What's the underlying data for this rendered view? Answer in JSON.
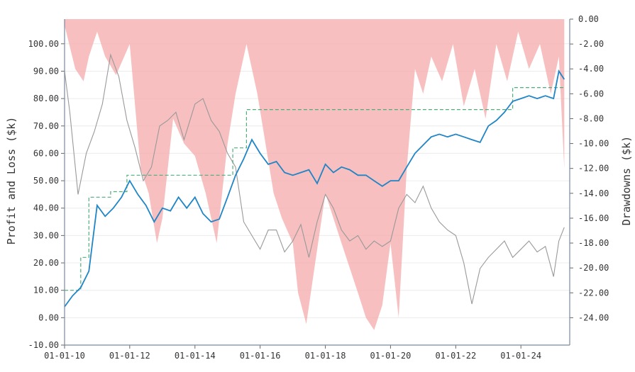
{
  "chart_data": {
    "type": "line",
    "xlabel": "",
    "ylabel": "Profit and Loss ($k)",
    "y2label": "Drawdowns ($k)",
    "xlim": [
      "2010-01-01",
      "2025-07-01"
    ],
    "ylim": [
      -10,
      109
    ],
    "y2lim": [
      -26.2,
      0
    ],
    "x_ticks": [
      {
        "date": "2010-01-01",
        "label": "01-01-10"
      },
      {
        "date": "2012-01-01",
        "label": "01-01-12"
      },
      {
        "date": "2014-01-01",
        "label": "01-01-14"
      },
      {
        "date": "2016-01-01",
        "label": "01-01-16"
      },
      {
        "date": "2018-01-01",
        "label": "01-01-18"
      },
      {
        "date": "2020-01-01",
        "label": "01-01-20"
      },
      {
        "date": "2022-01-01",
        "label": "01-01-22"
      },
      {
        "date": "2024-01-01",
        "label": "01-01-24"
      }
    ],
    "y_ticks": [
      "-10.00",
      "0.00",
      "10.00",
      "20.00",
      "30.00",
      "40.00",
      "50.00",
      "60.00",
      "70.00",
      "80.00",
      "90.00",
      "100.00"
    ],
    "y2_ticks": [
      "0.00",
      "-2.00",
      "-4.00",
      "-6.00",
      "-8.00",
      "-10.00",
      "-12.00",
      "-14.00",
      "-16.00",
      "-18.00",
      "-20.00",
      "-22.00",
      "-24.00"
    ],
    "grid": true,
    "legend": "none",
    "colors": {
      "pnl": "#1f85c6",
      "peak": "#4fae7c",
      "drawdown": "#f4aaaa",
      "price": "#999999"
    },
    "series": [
      {
        "role": "pnl",
        "x": [
          "2010-01-01",
          "2010-04-01",
          "2010-07-01",
          "2010-10-01",
          "2011-01-01",
          "2011-04-01",
          "2011-07-01",
          "2011-10-01",
          "2012-01-01",
          "2012-04-01",
          "2012-07-01",
          "2012-10-01",
          "2013-01-01",
          "2013-04-01",
          "2013-07-01",
          "2013-10-01",
          "2014-01-01",
          "2014-04-01",
          "2014-07-01",
          "2014-10-01",
          "2015-01-01",
          "2015-04-01",
          "2015-07-01",
          "2015-10-01",
          "2016-01-01",
          "2016-04-01",
          "2016-07-01",
          "2016-10-01",
          "2017-01-01",
          "2017-04-01",
          "2017-07-01",
          "2017-10-01",
          "2018-01-01",
          "2018-04-01",
          "2018-07-01",
          "2018-10-01",
          "2019-01-01",
          "2019-04-01",
          "2019-07-01",
          "2019-10-01",
          "2020-01-01",
          "2020-04-01",
          "2020-07-01",
          "2020-10-01",
          "2021-01-01",
          "2021-04-01",
          "2021-07-01",
          "2021-10-01",
          "2022-01-01",
          "2022-04-01",
          "2022-07-01",
          "2022-10-01",
          "2023-01-01",
          "2023-04-01",
          "2023-07-01",
          "2023-10-01",
          "2024-01-01",
          "2024-04-01",
          "2024-07-01",
          "2024-10-01",
          "2025-01-01",
          "2025-03-01",
          "2025-05-01"
        ],
        "y": [
          4,
          8,
          11,
          17,
          41,
          37,
          40,
          44,
          50,
          45,
          41,
          35,
          40,
          39,
          44,
          40,
          44,
          38,
          35,
          36,
          44,
          52,
          58,
          65,
          60,
          56,
          57,
          53,
          52,
          53,
          54,
          49,
          56,
          53,
          55,
          54,
          52,
          52,
          50,
          48,
          50,
          50,
          55,
          60,
          63,
          66,
          67,
          66,
          67,
          66,
          65,
          64,
          70,
          72,
          75,
          79,
          80,
          81,
          80,
          81,
          80,
          90,
          87
        ]
      },
      {
        "role": "peak",
        "x": [
          "2010-01-01",
          "2010-07-01",
          "2010-07-01",
          "2010-10-01",
          "2010-10-01",
          "2011-06-01",
          "2011-06-01",
          "2011-12-01",
          "2011-12-01",
          "2015-03-01",
          "2015-03-01",
          "2015-08-01",
          "2015-08-01",
          "2022-07-01",
          "2022-07-01",
          "2023-10-01",
          "2023-10-01",
          "2025-05-01"
        ],
        "y": [
          10,
          10,
          22,
          22,
          44,
          44,
          46,
          46,
          52,
          52,
          62,
          62,
          76,
          76,
          76,
          76,
          84,
          84
        ]
      },
      {
        "role": "drawdown",
        "x": [
          "2010-01-01",
          "2010-05-01",
          "2010-08-01",
          "2010-10-01",
          "2011-01-01",
          "2011-04-01",
          "2011-08-01",
          "2012-01-01",
          "2012-05-01",
          "2012-08-01",
          "2012-11-01",
          "2013-01-01",
          "2013-05-01",
          "2013-09-01",
          "2014-01-01",
          "2014-05-01",
          "2014-09-01",
          "2015-01-01",
          "2015-04-01",
          "2015-08-01",
          "2015-12-01",
          "2016-03-01",
          "2016-06-01",
          "2016-09-01",
          "2017-01-01",
          "2017-03-01",
          "2017-06-01",
          "2017-09-01",
          "2018-01-01",
          "2018-04-01",
          "2018-07-01",
          "2018-10-01",
          "2019-01-01",
          "2019-04-01",
          "2019-07-01",
          "2019-10-01",
          "2020-01-01",
          "2020-04-01",
          "2020-07-01",
          "2020-10-01",
          "2021-01-01",
          "2021-04-01",
          "2021-08-01",
          "2021-12-01",
          "2022-04-01",
          "2022-08-01",
          "2022-12-01",
          "2023-04-01",
          "2023-08-01",
          "2023-12-01",
          "2024-04-01",
          "2024-08-01",
          "2024-12-01",
          "2025-03-01",
          "2025-05-01"
        ],
        "y": [
          -0.5,
          -4,
          -5,
          -3,
          -1,
          -3,
          -4.5,
          -2,
          -12,
          -14,
          -18,
          -16,
          -8,
          -10,
          -11,
          -14,
          -18,
          -10,
          -6,
          -2,
          -6,
          -10,
          -14,
          -16,
          -18,
          -22,
          -24.5,
          -20,
          -14,
          -16,
          -18,
          -20,
          -22,
          -24,
          -25,
          -23,
          -18,
          -24,
          -12,
          -4,
          -6,
          -3,
          -5,
          -2,
          -7,
          -4,
          -8,
          -2,
          -5,
          -1,
          -4,
          -2,
          -6,
          -3,
          -12
        ]
      },
      {
        "role": "price",
        "x": [
          "2010-01-01",
          "2010-03-01",
          "2010-06-01",
          "2010-09-01",
          "2010-12-01",
          "2011-03-01",
          "2011-06-01",
          "2011-09-01",
          "2011-12-01",
          "2012-03-01",
          "2012-06-01",
          "2012-09-01",
          "2012-12-01",
          "2013-03-01",
          "2013-06-01",
          "2013-09-01",
          "2014-01-01",
          "2014-04-01",
          "2014-07-01",
          "2014-10-01",
          "2015-01-01",
          "2015-04-01",
          "2015-07-01",
          "2015-10-01",
          "2016-01-01",
          "2016-04-01",
          "2016-07-01",
          "2016-10-01",
          "2017-01-01",
          "2017-04-01",
          "2017-07-01",
          "2017-10-01",
          "2018-01-01",
          "2018-04-01",
          "2018-07-01",
          "2018-10-01",
          "2019-01-01",
          "2019-04-01",
          "2019-07-01",
          "2019-10-01",
          "2020-01-01",
          "2020-04-01",
          "2020-07-01",
          "2020-10-01",
          "2021-01-01",
          "2021-04-01",
          "2021-07-01",
          "2021-10-01",
          "2022-01-01",
          "2022-04-01",
          "2022-07-01",
          "2022-10-01",
          "2023-01-01",
          "2023-04-01",
          "2023-07-01",
          "2023-10-01",
          "2024-01-01",
          "2024-04-01",
          "2024-07-01",
          "2024-10-01",
          "2025-01-01",
          "2025-03-01",
          "2025-05-01"
        ],
        "y": [
          90,
          75,
          45,
          60,
          68,
          78,
          96,
          88,
          72,
          62,
          50,
          55,
          70,
          72,
          75,
          65,
          78,
          80,
          72,
          68,
          60,
          55,
          35,
          30,
          25,
          32,
          32,
          24,
          28,
          34,
          22,
          35,
          45,
          40,
          32,
          28,
          30,
          25,
          28,
          26,
          28,
          40,
          45,
          42,
          48,
          40,
          35,
          32,
          30,
          20,
          5,
          18,
          22,
          25,
          28,
          22,
          25,
          28,
          24,
          26,
          15,
          28,
          33
        ]
      }
    ]
  }
}
